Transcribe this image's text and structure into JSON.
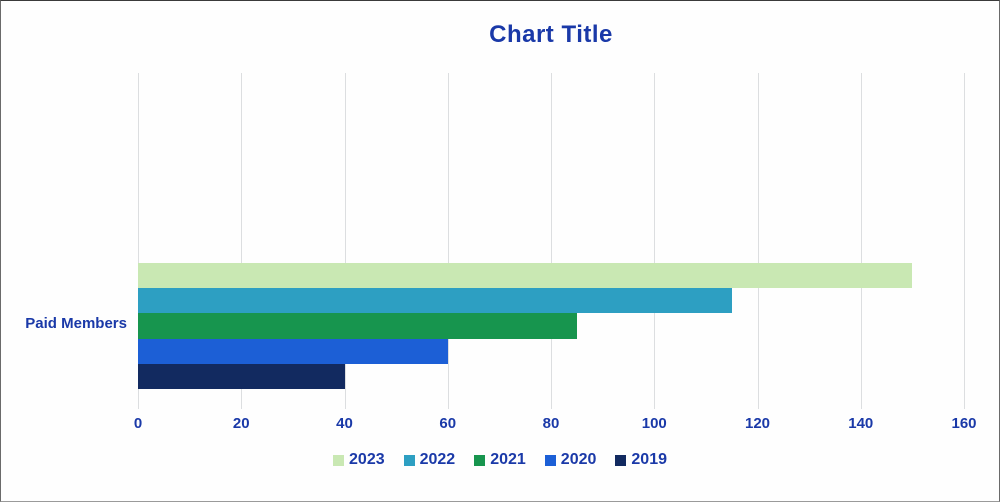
{
  "chart_data": {
    "type": "bar",
    "orientation": "horizontal",
    "title": "Chart Title",
    "categories": [
      "Paid Members"
    ],
    "series": [
      {
        "name": "2023",
        "values": [
          150
        ],
        "color": "#c9e8b3"
      },
      {
        "name": "2022",
        "values": [
          115
        ],
        "color": "#2d9fc2"
      },
      {
        "name": "2021",
        "values": [
          85
        ],
        "color": "#17954e"
      },
      {
        "name": "2020",
        "values": [
          60
        ],
        "color": "#1c5fd6"
      },
      {
        "name": "2019",
        "values": [
          40
        ],
        "color": "#122a60"
      }
    ],
    "xlabel": "",
    "ylabel": "",
    "xlim": [
      0,
      160
    ],
    "x_ticks": [
      0,
      20,
      40,
      60,
      80,
      100,
      120,
      140,
      160
    ],
    "grid": "vertical",
    "gridline_color": "#dcdee0",
    "legend_position": "bottom",
    "text_color": "#1a39a8"
  }
}
